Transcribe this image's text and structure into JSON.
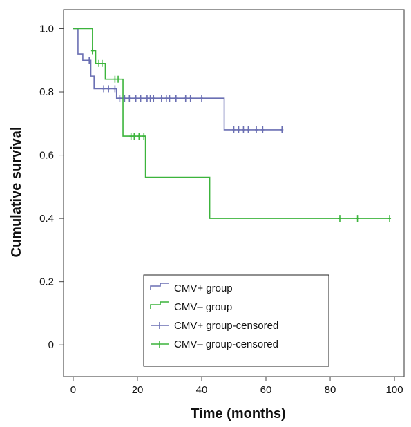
{
  "chart_data": {
    "type": "line",
    "subtype": "kaplan-meier-step",
    "title": "",
    "xlabel": "Time (months)",
    "ylabel": "Cumulative survival",
    "xlim": [
      -3,
      103
    ],
    "ylim": [
      -0.1,
      1.06
    ],
    "xticks": [
      0,
      20,
      40,
      60,
      80,
      100
    ],
    "xtick_labels": [
      "0",
      "20",
      "40",
      "60",
      "80",
      "100"
    ],
    "yticks": [
      0,
      0.2,
      0.4,
      0.6,
      0.8,
      1.0
    ],
    "ytick_labels": [
      "0",
      "0.2",
      "0.4",
      "0.6",
      "0.8",
      "1.0"
    ],
    "grid": false,
    "legend_position": "bottom-center",
    "series": [
      {
        "name": "CMV+ group",
        "color": "#6a6fb3",
        "steps": [
          [
            0,
            1.0
          ],
          [
            1.5,
            0.92
          ],
          [
            3,
            0.9
          ],
          [
            5.5,
            0.85
          ],
          [
            6.5,
            0.81
          ],
          [
            13.5,
            0.78
          ],
          [
            47,
            0.68
          ],
          [
            65,
            0.68
          ]
        ],
        "censored_name": "CMV+ group-censored",
        "censored": [
          [
            5,
            0.9
          ],
          [
            9.5,
            0.81
          ],
          [
            11,
            0.81
          ],
          [
            13,
            0.81
          ],
          [
            14.5,
            0.78
          ],
          [
            16,
            0.78
          ],
          [
            17.5,
            0.78
          ],
          [
            19.5,
            0.78
          ],
          [
            21,
            0.78
          ],
          [
            23,
            0.78
          ],
          [
            24,
            0.78
          ],
          [
            25,
            0.78
          ],
          [
            27.5,
            0.78
          ],
          [
            29,
            0.78
          ],
          [
            30,
            0.78
          ],
          [
            32,
            0.78
          ],
          [
            35,
            0.78
          ],
          [
            36.5,
            0.78
          ],
          [
            40,
            0.78
          ],
          [
            50,
            0.68
          ],
          [
            51.5,
            0.68
          ],
          [
            53,
            0.68
          ],
          [
            54.5,
            0.68
          ],
          [
            57,
            0.68
          ],
          [
            59,
            0.68
          ],
          [
            65,
            0.68
          ]
        ]
      },
      {
        "name": "CMV− group",
        "color": "#3cb43c",
        "steps": [
          [
            0,
            1.0
          ],
          [
            6,
            0.93
          ],
          [
            7,
            0.89
          ],
          [
            10,
            0.84
          ],
          [
            15.5,
            0.66
          ],
          [
            22.5,
            0.53
          ],
          [
            42.5,
            0.4
          ],
          [
            98.5,
            0.4
          ]
        ],
        "censored_name": "CMV− group-censored",
        "censored": [
          [
            6,
            0.93
          ],
          [
            8,
            0.89
          ],
          [
            9,
            0.89
          ],
          [
            13,
            0.84
          ],
          [
            14,
            0.84
          ],
          [
            18,
            0.66
          ],
          [
            19,
            0.66
          ],
          [
            20.5,
            0.66
          ],
          [
            22,
            0.66
          ],
          [
            83,
            0.4
          ],
          [
            88.5,
            0.4
          ],
          [
            98.5,
            0.4
          ]
        ]
      }
    ],
    "legend": [
      {
        "label": "CMV+ group",
        "kind": "step",
        "series": 0
      },
      {
        "label": "CMV– group",
        "kind": "step",
        "series": 1
      },
      {
        "label": "CMV+ group-censored",
        "kind": "censor",
        "series": 0
      },
      {
        "label": "CMV– group-censored",
        "kind": "censor",
        "series": 1
      }
    ]
  }
}
